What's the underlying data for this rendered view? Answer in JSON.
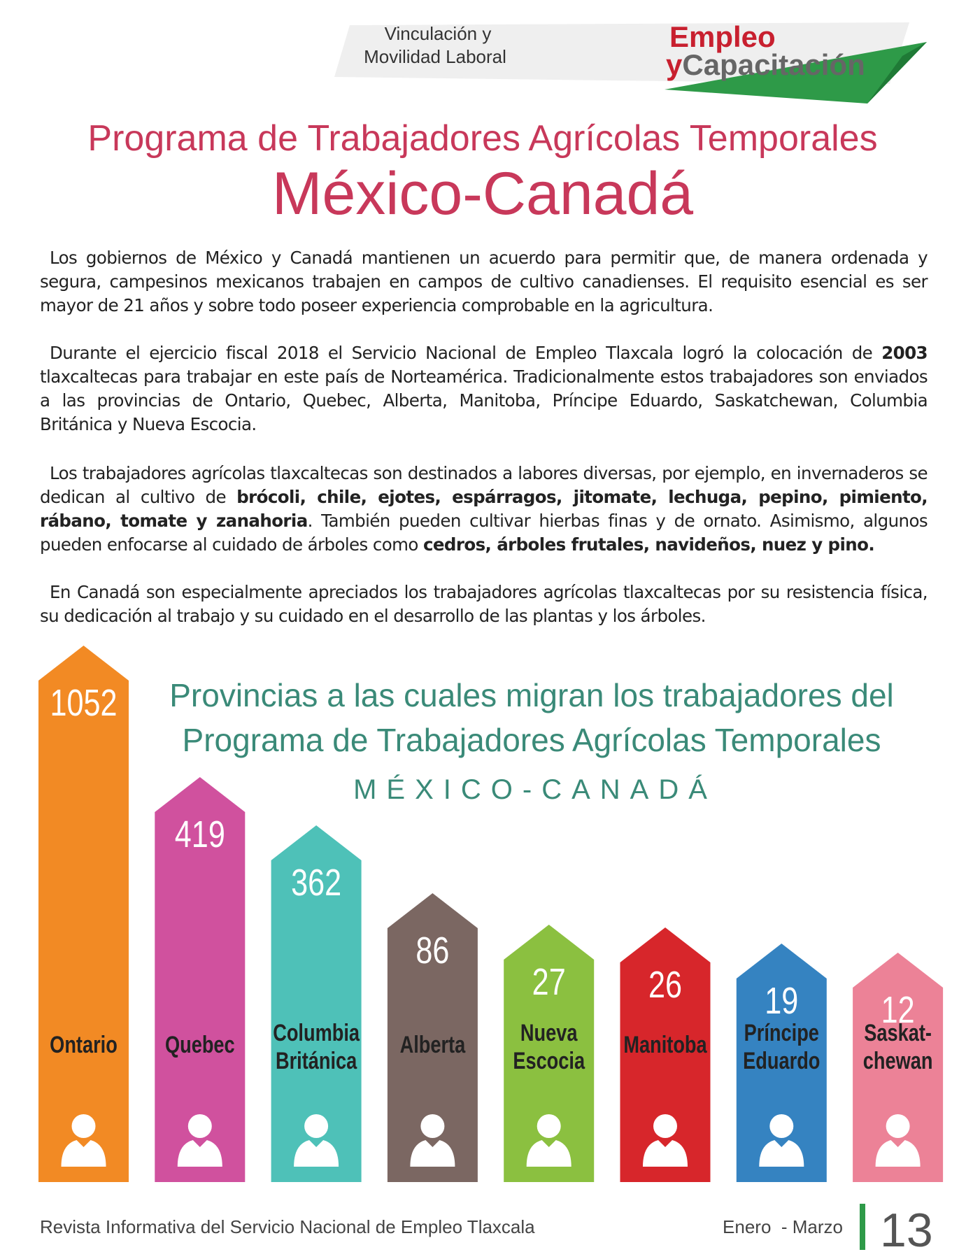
{
  "header": {
    "section": [
      "Vinculación y",
      "Movilidad Laboral"
    ],
    "brand": [
      "Empleo",
      "y",
      "Capacitación"
    ]
  },
  "title": [
    "Programa de Trabajadores Agrícolas Temporales",
    "México-Canadá"
  ],
  "paragraphs": [
    [
      "Los gobiernos de México y Canadá mantienen un acuerdo para permitir que, de manera ordenada y segura, campesinos mexicanos trabajen en campos de cultivo canadienses. El requisito esencial es ser mayor de 21 años y sobre todo poseer experiencia comprobable en la agricultura."
    ],
    [
      "Durante el ejercicio fiscal 2018 el Servicio Nacional de Empleo Tlaxcala logró la colocación de ",
      "2003",
      " tlaxcaltecas para trabajar en este país de Norteamérica. Tradicionalmente estos trabajadores son enviados a las provincias de Ontario, Quebec, Alberta, Manitoba, Príncipe Eduardo, Saskatchewan, Columbia Británica y Nueva Escocia."
    ],
    [
      "Los trabajadores agrícolas tlaxcaltecas son destinados a labores diversas, por ejemplo, en invernaderos se dedican al cultivo de ",
      "brócoli, chile, ejotes, espárragos, jitomate, lechuga, pepino, pimiento, rábano, tomate y zanahoria",
      ". También pueden cultivar hierbas finas y de ornato. Asimismo, algunos pueden enfocarse al cuidado de árboles como ",
      "cedros, árboles frutales, navideños, nuez y pino."
    ],
    [
      "En Canadá son especialmente apreciados los trabajadores agrícolas tlaxcaltecas por su resistencia física, su dedicación al trabajo y su cuidado en el desarrollo de las plantas y los árboles."
    ]
  ],
  "infographic": {
    "title": [
      "Provincias a las cuales migran los trabajadores del",
      "Programa de Trabajadores Agrícolas Temporales"
    ],
    "subtitle": "MÉXICO-CANADÁ",
    "items": [
      {
        "label": [
          "Ontario"
        ],
        "value": 1052,
        "color": "#f28a24"
      },
      {
        "label": [
          "Quebec"
        ],
        "value": 419,
        "color": "#d0519e"
      },
      {
        "label": [
          "Columbia",
          "Británica"
        ],
        "value": 362,
        "color": "#4ec1b8"
      },
      {
        "label": [
          "Alberta"
        ],
        "value": 86,
        "color": "#7b6762"
      },
      {
        "label": [
          "Nueva",
          "Escocia"
        ],
        "value": 27,
        "color": "#8bc040"
      },
      {
        "label": [
          "Manitoba"
        ],
        "value": 26,
        "color": "#d7262b"
      },
      {
        "label": [
          "Príncipe",
          "Eduardo"
        ],
        "value": 19,
        "color": "#3583c1"
      },
      {
        "label": [
          "Saskat-",
          "chewan"
        ],
        "value": 12,
        "color": "#ec8297"
      }
    ]
  },
  "footer": {
    "publication": "Revista Informativa del Servicio Nacional de Empleo Tlaxcala",
    "period": "Enero  - Marzo",
    "page": 13
  }
}
